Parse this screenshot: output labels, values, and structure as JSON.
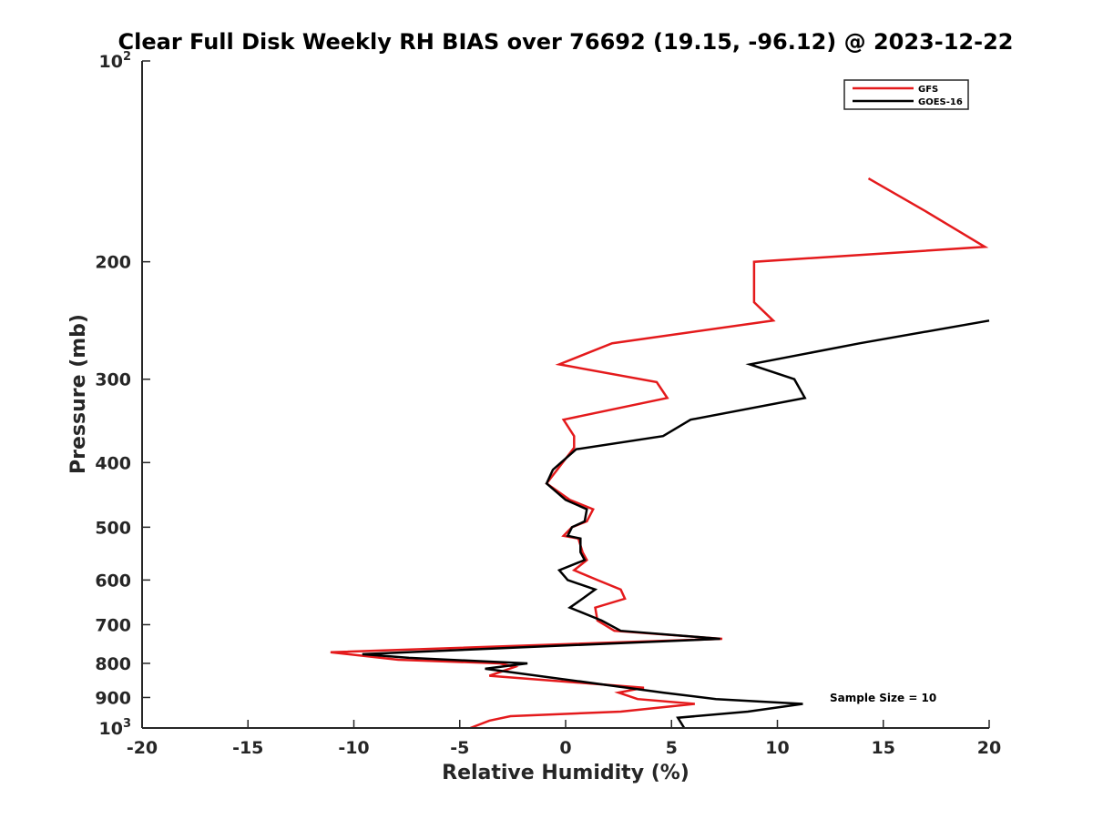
{
  "chart_data": {
    "type": "line",
    "title": "Clear Full Disk Weekly RH BIAS over 76692 (19.15, -96.12) @ 2023-12-22",
    "xlabel": "Relative Humidity (%)",
    "ylabel": "Pressure (mb)",
    "xlim": [
      -20,
      20
    ],
    "ylim": [
      1000,
      100
    ],
    "yscale": "log",
    "x_ticks": [
      "-20",
      "-15",
      "-10",
      "-5",
      "0",
      "5",
      "10",
      "15",
      "20"
    ],
    "y_ticks": [
      {
        "value": 100,
        "label": "10",
        "exp": "2"
      },
      {
        "value": 200,
        "label": "200",
        "exp": ""
      },
      {
        "value": 300,
        "label": "300",
        "exp": ""
      },
      {
        "value": 400,
        "label": "400",
        "exp": ""
      },
      {
        "value": 500,
        "label": "500",
        "exp": ""
      },
      {
        "value": 600,
        "label": "600",
        "exp": ""
      },
      {
        "value": 700,
        "label": "700",
        "exp": ""
      },
      {
        "value": 800,
        "label": "800",
        "exp": ""
      },
      {
        "value": 900,
        "label": "900",
        "exp": ""
      },
      {
        "value": 1000,
        "label": "10",
        "exp": "3"
      }
    ],
    "grid": false,
    "legend_position": "top-right",
    "series": [
      {
        "name": "GFS",
        "color": "#e41a1c",
        "points": [
          [
            14.3,
            150
          ],
          [
            17.0,
            168
          ],
          [
            19.8,
            190
          ],
          [
            8.9,
            200
          ],
          [
            8.9,
            230
          ],
          [
            9.8,
            245
          ],
          [
            2.2,
            265
          ],
          [
            -0.3,
            285
          ],
          [
            4.3,
            303
          ],
          [
            4.8,
            320
          ],
          [
            -0.1,
            345
          ],
          [
            0.4,
            365
          ],
          [
            0.4,
            380
          ],
          [
            -0.4,
            410
          ],
          [
            -0.9,
            430
          ],
          [
            0.2,
            455
          ],
          [
            1.3,
            470
          ],
          [
            1.0,
            490
          ],
          [
            0.3,
            500
          ],
          [
            -0.1,
            515
          ],
          [
            0.6,
            520
          ],
          [
            0.8,
            545
          ],
          [
            1.0,
            560
          ],
          [
            0.4,
            580
          ],
          [
            1.5,
            600
          ],
          [
            2.6,
            620
          ],
          [
            2.8,
            640
          ],
          [
            1.4,
            660
          ],
          [
            1.5,
            690
          ],
          [
            2.3,
            715
          ],
          [
            7.4,
            735
          ],
          [
            -11.1,
            770
          ],
          [
            -7.9,
            790
          ],
          [
            -3.1,
            800
          ],
          [
            -2.4,
            810
          ],
          [
            -3.6,
            835
          ],
          [
            3.7,
            870
          ],
          [
            2.5,
            885
          ],
          [
            3.4,
            905
          ],
          [
            6.1,
            920
          ],
          [
            2.6,
            945
          ],
          [
            -2.6,
            960
          ],
          [
            -3.6,
            975
          ],
          [
            -4.5,
            1000
          ]
        ]
      },
      {
        "name": "GOES-16",
        "color": "#000000",
        "points": [
          [
            20.0,
            245
          ],
          [
            13.9,
            265
          ],
          [
            8.7,
            285
          ],
          [
            10.8,
            300
          ],
          [
            11.3,
            320
          ],
          [
            5.9,
            345
          ],
          [
            4.6,
            365
          ],
          [
            0.5,
            382
          ],
          [
            -0.6,
            410
          ],
          [
            -0.9,
            430
          ],
          [
            0.0,
            455
          ],
          [
            1.0,
            470
          ],
          [
            0.9,
            490
          ],
          [
            0.3,
            500
          ],
          [
            0.1,
            515
          ],
          [
            0.7,
            520
          ],
          [
            0.7,
            545
          ],
          [
            0.9,
            560
          ],
          [
            -0.3,
            580
          ],
          [
            0.1,
            600
          ],
          [
            1.4,
            620
          ],
          [
            0.8,
            640
          ],
          [
            0.2,
            660
          ],
          [
            1.7,
            690
          ],
          [
            2.6,
            715
          ],
          [
            7.3,
            735
          ],
          [
            -9.6,
            775
          ],
          [
            -7.4,
            785
          ],
          [
            -1.8,
            800
          ],
          [
            -3.8,
            815
          ],
          [
            2.9,
            870
          ],
          [
            4.6,
            885
          ],
          [
            7.1,
            905
          ],
          [
            11.2,
            920
          ],
          [
            8.6,
            945
          ],
          [
            5.3,
            965
          ],
          [
            5.6,
            1000
          ]
        ]
      }
    ],
    "annotation": "Sample Size = 10"
  }
}
